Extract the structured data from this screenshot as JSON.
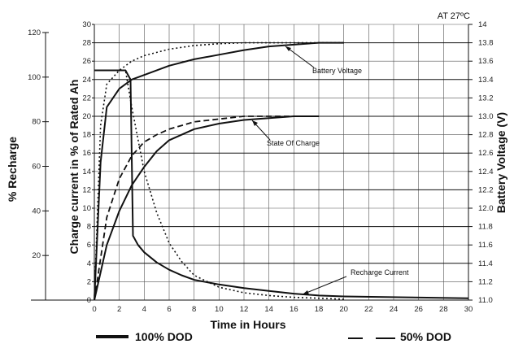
{
  "chart_data": {
    "type": "line",
    "title": "",
    "condition": "AT 27ºC",
    "xlabel": "Time in Hours",
    "ylabel_left_outer": "% Recharge",
    "ylabel_left_inner": "Charge current in % of Rated Ah",
    "ylabel_right": "Battery Voltage (V)",
    "xlim": [
      0,
      30
    ],
    "ylim_current": [
      0,
      30
    ],
    "ylim_recharge": [
      0,
      120
    ],
    "ylim_voltage": [
      11.0,
      14.0
    ],
    "x_ticks": [
      "0",
      "2",
      "4",
      "6",
      "8",
      "10",
      "12",
      "14",
      "16",
      "18",
      "20",
      "22",
      "24",
      "26",
      "28",
      "30"
    ],
    "y_ticks_current": [
      "0",
      "2",
      "4",
      "6",
      "8",
      "10",
      "12",
      "14",
      "16",
      "18",
      "20",
      "22",
      "24",
      "26",
      "28",
      "30"
    ],
    "y_ticks_recharge": [
      "20",
      "40",
      "60",
      "80",
      "100",
      "120"
    ],
    "y_ticks_voltage": [
      "11.0",
      "11.2",
      "11.4",
      "11.6",
      "11.8",
      "12.0",
      "12.2",
      "12.4",
      "12.6",
      "12.8",
      "13.0",
      "13.2",
      "13.4",
      "13.6",
      "13.8",
      "14"
    ],
    "grid": true,
    "legend": [
      {
        "label": "100% DOD",
        "style": "solid"
      },
      {
        "label": "50% DOD",
        "style": "dashed"
      }
    ],
    "annotations": [
      "Battery Voltage",
      "State Of Charge",
      "Recharge Current"
    ],
    "series": [
      {
        "curve": "Battery Voltage",
        "dod": "100% DOD",
        "style": "solid",
        "x": [
          0,
          0.5,
          1,
          2,
          3,
          4,
          6,
          8,
          10,
          12,
          14,
          16,
          18,
          19,
          20
        ],
        "y": [
          11.0,
          12.5,
          13.1,
          13.3,
          13.4,
          13.45,
          13.55,
          13.62,
          13.67,
          13.72,
          13.76,
          13.78,
          13.8,
          13.8,
          13.8
        ]
      },
      {
        "curve": "Battery Voltage",
        "dod": "50% DOD",
        "style": "dotted",
        "x": [
          0,
          0.5,
          1,
          2,
          3,
          4,
          6,
          8,
          10,
          12,
          14,
          16,
          18,
          20
        ],
        "y": [
          11.0,
          12.9,
          13.35,
          13.5,
          13.6,
          13.66,
          13.73,
          13.77,
          13.79,
          13.8,
          13.8,
          13.8,
          13.8,
          13.8
        ]
      },
      {
        "curve": "State Of Charge",
        "dod": "100% DOD",
        "style": "solid",
        "x": [
          0,
          1,
          2,
          3,
          4,
          5,
          6,
          8,
          10,
          12,
          14,
          16,
          17,
          18
        ],
        "y": [
          11.0,
          11.6,
          11.97,
          12.25,
          12.45,
          12.62,
          12.74,
          12.86,
          12.92,
          12.96,
          12.98,
          13.0,
          13.0,
          13.0
        ]
      },
      {
        "curve": "State Of Charge",
        "dod": "50% DOD",
        "style": "dashed",
        "x": [
          0,
          1,
          2,
          3,
          4,
          5,
          6,
          8,
          10,
          12,
          14,
          16,
          18
        ],
        "y": [
          11.0,
          11.9,
          12.32,
          12.57,
          12.72,
          12.8,
          12.86,
          12.94,
          12.97,
          13.0,
          13.0,
          13.0,
          13.0
        ]
      },
      {
        "curve": "Recharge Current",
        "dod": "100% DOD",
        "style": "solid",
        "x": [
          0,
          1,
          2,
          2.5,
          2.9,
          3.1,
          3.5,
          4,
          5,
          6,
          7,
          8,
          10,
          12,
          14,
          16,
          17,
          18,
          20,
          25,
          30
        ],
        "y": [
          25,
          25,
          25,
          25,
          24,
          7,
          6,
          5.2,
          4.1,
          3.3,
          2.7,
          2.2,
          1.7,
          1.3,
          1.0,
          0.7,
          0.6,
          0.5,
          0.4,
          0.3,
          0.2
        ]
      },
      {
        "curve": "Recharge Current",
        "dod": "50% DOD",
        "style": "dotted",
        "x": [
          0,
          1,
          2,
          2.5,
          3,
          4,
          5,
          6,
          7,
          8,
          10,
          12,
          14,
          16,
          18,
          20
        ],
        "y": [
          25,
          25,
          25,
          25,
          21,
          14,
          9.5,
          6.2,
          4.2,
          2.7,
          1.4,
          0.8,
          0.5,
          0.3,
          0.2,
          0.1
        ]
      }
    ]
  }
}
